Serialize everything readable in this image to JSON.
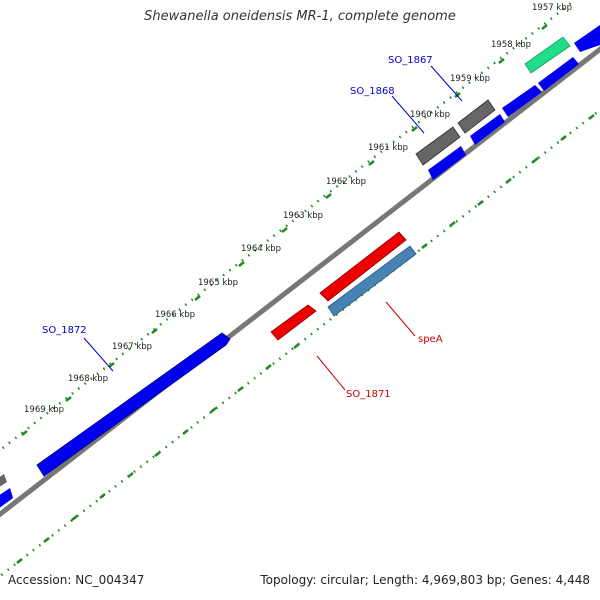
{
  "title": "Shewanella oneidensis MR-1, complete genome",
  "footer": {
    "accession": "Accession: NC_004347",
    "summary": "Topology: circular; Length: 4,969,803 bp; Genes: 4,448"
  },
  "colors": {
    "backbone": "#777777",
    "ticks": "#1f8a1f",
    "tick_label": "#222222",
    "gene_blue": "#0000ee",
    "gene_red": "#ee0000",
    "gene_gray": "#666666",
    "gene_green": "#22dd88",
    "gene_steel": "#4682b4",
    "label_blue": "#0000cc",
    "label_red": "#cc0000"
  },
  "tick_labels": [
    "1957 kbp",
    "1958 kbp",
    "1959 kbp",
    "1960 kbp",
    "1961 kbp",
    "1962 kbp",
    "1963 kbp",
    "1964 kbp",
    "1965 kbp",
    "1966 kbp",
    "1967 kbp",
    "1968 kbp",
    "1969 kbp"
  ],
  "feature_labels": [
    {
      "text": "SO_1867",
      "color": "blue"
    },
    {
      "text": "SO_1868",
      "color": "blue"
    },
    {
      "text": "SO_1872",
      "color": "blue"
    },
    {
      "text": "speA",
      "color": "red"
    },
    {
      "text": "SO_1871",
      "color": "red"
    }
  ]
}
